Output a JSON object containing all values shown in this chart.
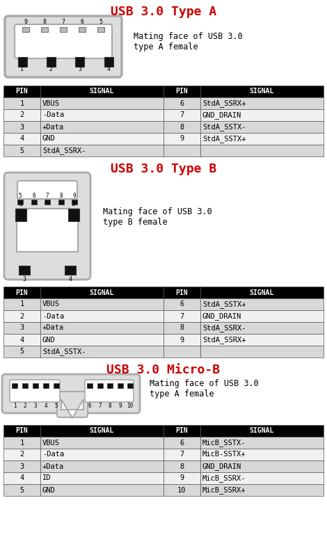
{
  "bg_color": "#ffffff",
  "title_color": "#cc0000",
  "header_bg": "#000000",
  "header_fg": "#ffffff",
  "row_bg_odd": "#d8d8d8",
  "row_bg_even": "#f0f0f0",
  "border_color": "#555555",
  "connector_gray": "#aaaaaa",
  "connector_face": "#dddddd",
  "figw": 4.7,
  "figh": 7.85,
  "dpi": 100,
  "sections": [
    {
      "title": "USB 3.0 Type A",
      "connector_label": "Mating face of USB 3.0\ntype A female",
      "pins_left": [
        [
          "1",
          "VBUS"
        ],
        [
          "2",
          "-Data"
        ],
        [
          "3",
          "+Data"
        ],
        [
          "4",
          "GND"
        ],
        [
          "5",
          "StdA_SSRX-"
        ]
      ],
      "pins_right": [
        [
          "6",
          "StdA_SSRX+"
        ],
        [
          "7",
          "GND_DRAIN"
        ],
        [
          "8",
          "StdA_SSTX-"
        ],
        [
          "9",
          "StdA_SSTX+"
        ]
      ]
    },
    {
      "title": "USB 3.0 Type B",
      "connector_label": "Mating face of USB 3.0\ntype B female",
      "pins_left": [
        [
          "1",
          "VBUS"
        ],
        [
          "2",
          "-Data"
        ],
        [
          "3",
          "+Data"
        ],
        [
          "4",
          "GND"
        ],
        [
          "5",
          "StdA_SSTX-"
        ]
      ],
      "pins_right": [
        [
          "6",
          "StdA_SSTX+"
        ],
        [
          "7",
          "GND_DRAIN"
        ],
        [
          "8",
          "StdA_SSRX-"
        ],
        [
          "9",
          "StdA_SSRX+"
        ]
      ]
    },
    {
      "title": "USB 3.0 Micro-B",
      "connector_label": "Mating face of USB 3.0\ntype A female",
      "pins_left": [
        [
          "1",
          "VBUS"
        ],
        [
          "2",
          "-Data"
        ],
        [
          "3",
          "+Data"
        ],
        [
          "4",
          "ID"
        ],
        [
          "5",
          "GND"
        ]
      ],
      "pins_right": [
        [
          "6",
          "MicB_SSTX-"
        ],
        [
          "7",
          "MicB-SSTX+"
        ],
        [
          "8",
          "GND_DRAIN"
        ],
        [
          "9",
          "MicB_SSRX-"
        ],
        [
          "10",
          "MicB_SSRX+"
        ]
      ]
    }
  ]
}
